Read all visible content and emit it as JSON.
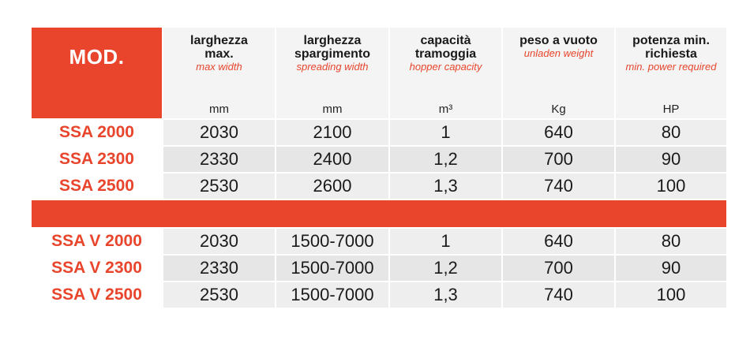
{
  "header": {
    "mod": "MOD.",
    "columns": [
      {
        "it": "larghezza max.",
        "en": "max width",
        "unit": "mm"
      },
      {
        "it": "larghezza spargimento",
        "en": "spreading width",
        "unit": "mm"
      },
      {
        "it": "capacità tramoggia",
        "en": "hopper capacity",
        "unit": "m³"
      },
      {
        "it": "peso a vuoto",
        "en": "unladen weight",
        "unit": "Kg"
      },
      {
        "it": "potenza min. richiesta",
        "en": "min. power required",
        "unit": "HP"
      }
    ]
  },
  "group_a": [
    {
      "model": "SSA 2000",
      "values": [
        "2030",
        "2100",
        "1",
        "640",
        "80"
      ]
    },
    {
      "model": "SSA 2300",
      "values": [
        "2330",
        "2400",
        "1,2",
        "700",
        "90"
      ]
    },
    {
      "model": "SSA 2500",
      "values": [
        "2530",
        "2600",
        "1,3",
        "740",
        "100"
      ]
    }
  ],
  "group_b": [
    {
      "model": "SSA V 2000",
      "values": [
        "2030",
        "1500-7000",
        "1",
        "640",
        "80"
      ]
    },
    {
      "model": "SSA V 2300",
      "values": [
        "2330",
        "1500-7000",
        "1,2",
        "700",
        "90"
      ]
    },
    {
      "model": "SSA V 2500",
      "values": [
        "2530",
        "1500-7000",
        "1,3",
        "740",
        "100"
      ]
    }
  ],
  "colors": {
    "accent": "#e8452c",
    "cell": "#eeeeee"
  }
}
